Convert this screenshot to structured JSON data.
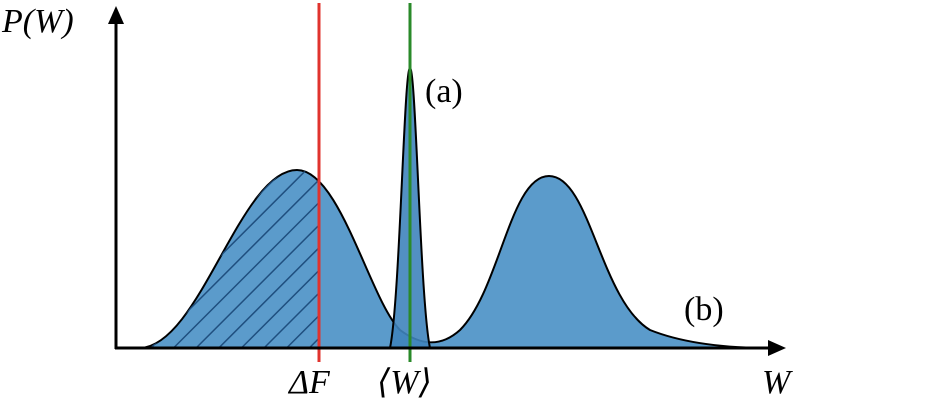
{
  "labels": {
    "y_axis": "P(W)",
    "x_axis": "W",
    "delta_f": "ΔF",
    "mean_w": "⟨W⟩",
    "peak_a": "(a)",
    "peak_b": "(b)"
  }
}
